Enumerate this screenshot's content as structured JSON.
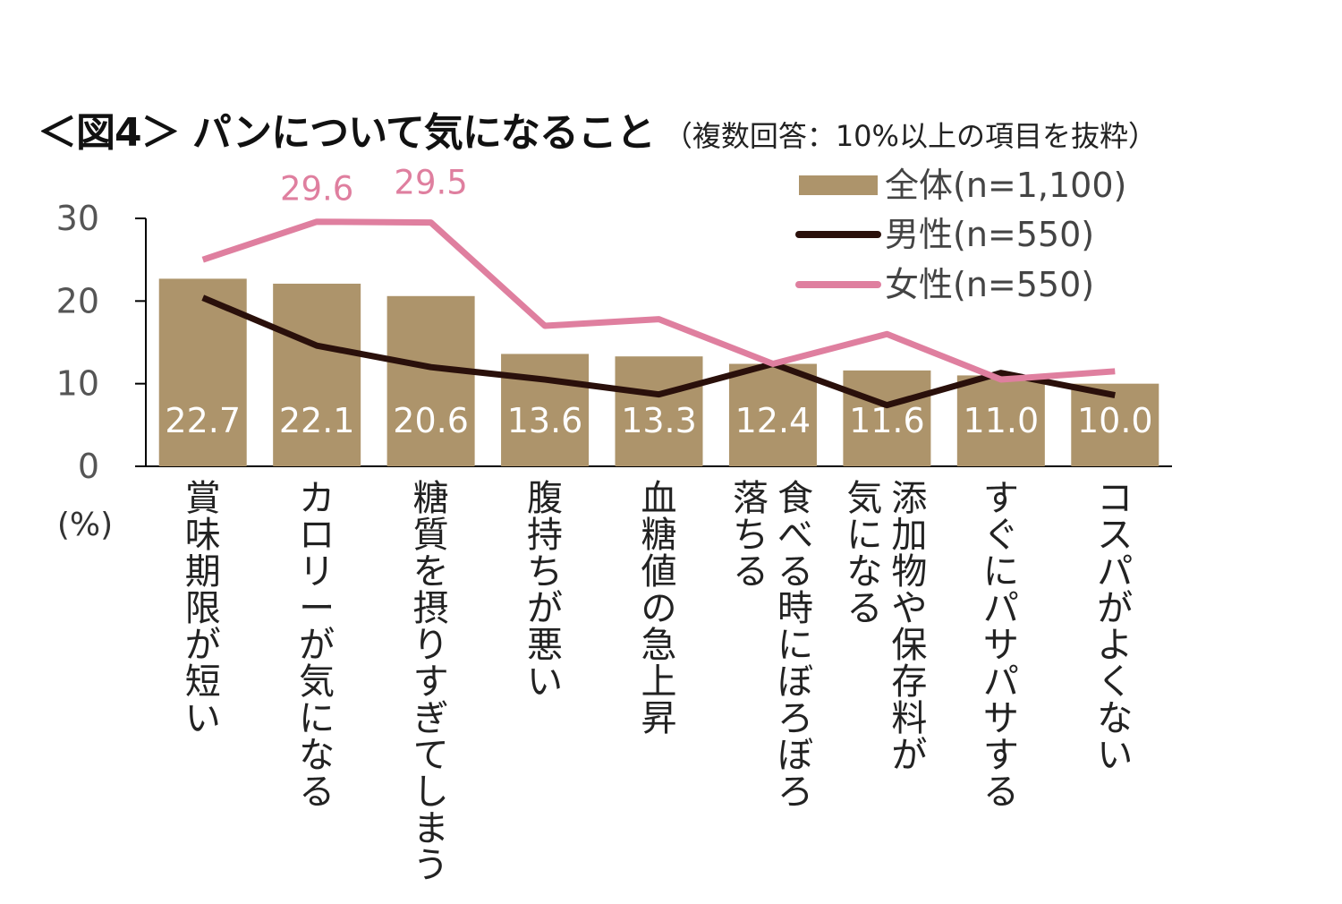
{
  "title": {
    "main": "＜図4＞ パンについて気になること",
    "sub": "（複数回答：10%以上の項目を抜粋）"
  },
  "chart_data": {
    "type": "bar",
    "ylim": [
      0,
      30
    ],
    "yticks": [
      "0",
      "10",
      "20",
      "30"
    ],
    "yunit": "(%)",
    "categories": [
      [
        "賞味期限が短い"
      ],
      [
        "カロリーが気になる"
      ],
      [
        "糖質を摂りすぎてしまう"
      ],
      [
        "腹持ちが悪い"
      ],
      [
        "血糖値の急上昇"
      ],
      [
        "食べる時にぼろぼろ",
        "落ちる"
      ],
      [
        "添加物や保存料が",
        "気になる"
      ],
      [
        "すぐにパサパサする"
      ],
      [
        "コスパがよくない"
      ]
    ],
    "series": [
      {
        "name": "全体(n=1,100)",
        "kind": "bar",
        "color": "#ad946b",
        "values": [
          22.7,
          22.1,
          20.6,
          13.6,
          13.3,
          12.4,
          11.6,
          11.0,
          10.0
        ],
        "labels": [
          "22.7",
          "22.1",
          "20.6",
          "13.6",
          "13.3",
          "12.4",
          "11.6",
          "11.0",
          "10.0"
        ]
      },
      {
        "name": "男性(n=550)",
        "kind": "line",
        "color": "#2a100b",
        "values": [
          20.4,
          14.6,
          12.0,
          10.5,
          8.7,
          12.4,
          7.4,
          11.3,
          8.6
        ]
      },
      {
        "name": "女性(n=550)",
        "kind": "line",
        "color": "#df7f9f",
        "values": [
          25.0,
          29.6,
          29.5,
          17.0,
          17.8,
          12.4,
          16.0,
          10.5,
          11.5
        ],
        "point_labels": [
          {
            "index": 1,
            "text": "29.6"
          },
          {
            "index": 2,
            "text": "29.5"
          }
        ]
      }
    ],
    "legend": {
      "position": "top-right"
    },
    "grid": false
  }
}
